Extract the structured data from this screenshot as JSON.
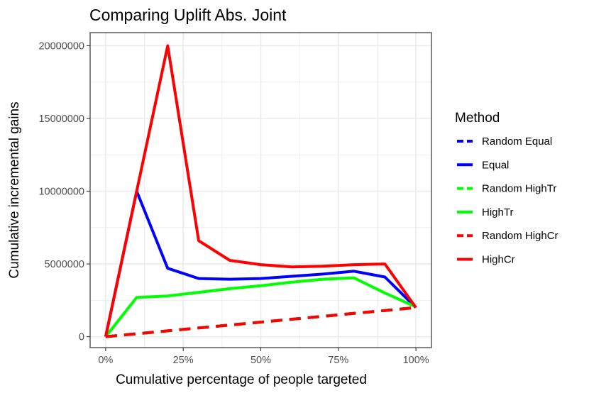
{
  "chart_data": {
    "type": "line",
    "title": "Comparing Uplift Abs. Joint",
    "xlabel": "Cumulative percentage of people targeted",
    "ylabel": "Cumulative incremental gains",
    "x": [
      0,
      0.1,
      0.2,
      0.3,
      0.4,
      0.5,
      0.6,
      0.7,
      0.8,
      0.9,
      1.0
    ],
    "xlim": [
      -0.05,
      1.05
    ],
    "ylim": [
      -750000,
      20900000
    ],
    "x_ticks": [
      0,
      0.25,
      0.5,
      0.75,
      1.0
    ],
    "x_tick_labels": [
      "0%",
      "25%",
      "50%",
      "75%",
      "100%"
    ],
    "y_ticks": [
      0,
      5000000,
      10000000,
      15000000,
      20000000
    ],
    "y_tick_labels": [
      "0",
      "5000000",
      "10000000",
      "15000000",
      "20000000"
    ],
    "grid": true,
    "legend": {
      "title": "Method",
      "position": "right"
    },
    "series": [
      {
        "name": "Random Equal",
        "color": "#0000ff",
        "dashed": true,
        "values": [
          0,
          200000,
          400000,
          600000,
          800000,
          1000000,
          1200000,
          1400000,
          1600000,
          1800000,
          2000000
        ]
      },
      {
        "name": "Equal",
        "color": "#0000ff",
        "dashed": false,
        "values": [
          0,
          10000000,
          4700000,
          4000000,
          3950000,
          4000000,
          4150000,
          4300000,
          4500000,
          4100000,
          2000000
        ]
      },
      {
        "name": "Random HighTr",
        "color": "#00ff00",
        "dashed": true,
        "values": [
          0,
          200000,
          400000,
          600000,
          800000,
          1000000,
          1200000,
          1400000,
          1600000,
          1800000,
          2000000
        ]
      },
      {
        "name": "HighTr",
        "color": "#00ff00",
        "dashed": false,
        "values": [
          0,
          2700000,
          2800000,
          3050000,
          3300000,
          3500000,
          3750000,
          3950000,
          4050000,
          3000000,
          2050000
        ]
      },
      {
        "name": "Random HighCr",
        "color": "#ff0000",
        "dashed": true,
        "values": [
          0,
          200000,
          400000,
          600000,
          800000,
          1000000,
          1200000,
          1400000,
          1600000,
          1800000,
          2000000
        ]
      },
      {
        "name": "HighCr",
        "color": "#ff0000",
        "dashed": false,
        "values": [
          0,
          10000000,
          20000000,
          6600000,
          5250000,
          4950000,
          4800000,
          4850000,
          4950000,
          5000000,
          2000000
        ]
      }
    ]
  }
}
